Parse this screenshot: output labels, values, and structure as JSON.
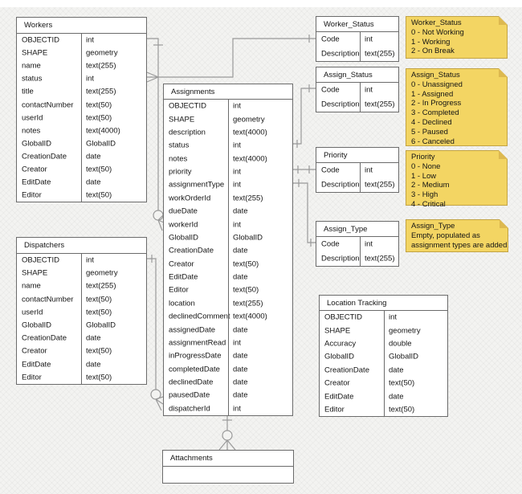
{
  "colors": {
    "canvas_bg": "#f3f3f1",
    "line": "#999999",
    "border": "#6b6b6b",
    "table_bg": "#ffffff",
    "text": "#141414",
    "note_fill": "#f3d563",
    "note_fold": "#ddb950",
    "note_edge": "#c2a344"
  },
  "tables": [
    {
      "name": "Workers",
      "fields": [
        [
          "OBJECTID",
          "int"
        ],
        [
          "SHAPE",
          "geometry"
        ],
        [
          "name",
          "text(255)"
        ],
        [
          "status",
          "int"
        ],
        [
          "title",
          "text(255)"
        ],
        [
          "contactNumber",
          "text(50)"
        ],
        [
          "userId",
          "text(50)"
        ],
        [
          "notes",
          "text(4000)"
        ],
        [
          "GlobalID",
          "GlobalID"
        ],
        [
          "CreationDate",
          "date"
        ],
        [
          "Creator",
          "text(50)"
        ],
        [
          "EditDate",
          "date"
        ],
        [
          "Editor",
          "text(50)"
        ]
      ]
    },
    {
      "name": "Dispatchers",
      "fields": [
        [
          "OBJECTID",
          "int"
        ],
        [
          "SHAPE",
          "geometry"
        ],
        [
          "name",
          "text(255)"
        ],
        [
          "contactNumber",
          "text(50)"
        ],
        [
          "userId",
          "text(50)"
        ],
        [
          "GlobalID",
          "GlobalID"
        ],
        [
          "CreationDate",
          "date"
        ],
        [
          "Creator",
          "text(50)"
        ],
        [
          "EditDate",
          "date"
        ],
        [
          "Editor",
          "text(50)"
        ]
      ]
    },
    {
      "name": "Assignments",
      "fields": [
        [
          "OBJECTID",
          "int"
        ],
        [
          "SHAPE",
          "geometry"
        ],
        [
          "description",
          "text(4000)"
        ],
        [
          "status",
          "int"
        ],
        [
          "notes",
          "text(4000)"
        ],
        [
          "priority",
          "int"
        ],
        [
          "assignmentType",
          "int"
        ],
        [
          "workOrderId",
          "text(255)"
        ],
        [
          "dueDate",
          "date"
        ],
        [
          "workerId",
          "int"
        ],
        [
          "GlobalID",
          "GlobalID"
        ],
        [
          "CreationDate",
          "date"
        ],
        [
          "Creator",
          "text(50)"
        ],
        [
          "EditDate",
          "date"
        ],
        [
          "Editor",
          "text(50)"
        ],
        [
          "location",
          "text(255)"
        ],
        [
          "declinedComment",
          "text(4000)"
        ],
        [
          "assignedDate",
          "date"
        ],
        [
          "assignmentRead",
          "int"
        ],
        [
          "inProgressDate",
          "date"
        ],
        [
          "completedDate",
          "date"
        ],
        [
          "declinedDate",
          "date"
        ],
        [
          "pausedDate",
          "date"
        ],
        [
          "dispatcherId",
          "int"
        ]
      ]
    },
    {
      "name": "Worker_Status",
      "fields": [
        [
          "Code",
          "int"
        ],
        [
          "Description",
          "text(255)"
        ]
      ]
    },
    {
      "name": "Assign_Status",
      "fields": [
        [
          "Code",
          "int"
        ],
        [
          "Description",
          "text(255)"
        ]
      ]
    },
    {
      "name": "Priority",
      "fields": [
        [
          "Code",
          "int"
        ],
        [
          "Description",
          "text(255)"
        ]
      ]
    },
    {
      "name": "Assign_Type",
      "fields": [
        [
          "Code",
          "int"
        ],
        [
          "Description",
          "text(255)"
        ]
      ]
    },
    {
      "name": "Location Tracking",
      "fields": [
        [
          "OBJECTID",
          "int"
        ],
        [
          "SHAPE",
          "geometry"
        ],
        [
          "Accuracy",
          "double"
        ],
        [
          "GlobalID",
          "GlobalID"
        ],
        [
          "CreationDate",
          "date"
        ],
        [
          "Creator",
          "text(50)"
        ],
        [
          "EditDate",
          "date"
        ],
        [
          "Editor",
          "text(50)"
        ]
      ]
    },
    {
      "name": "Attachments",
      "fields": []
    }
  ],
  "notes": [
    {
      "title": "Worker_Status",
      "lines": [
        "0 - Not Working",
        "1 - Working",
        "2 - On Break"
      ]
    },
    {
      "title": "Assign_Status",
      "lines": [
        "0 - Unassigned",
        "1 - Assigned",
        "2 - In Progress",
        "3 - Completed",
        "4 - Declined",
        "5 - Paused",
        "6 - Canceled"
      ]
    },
    {
      "title": "Priority",
      "lines": [
        "0 - None",
        "1 - Low",
        "2 - Medium",
        "3 - High",
        "4 - Critical"
      ]
    },
    {
      "title": "Assign_Type",
      "lines": [
        "Empty, populated as",
        "assignment types are added"
      ]
    }
  ]
}
